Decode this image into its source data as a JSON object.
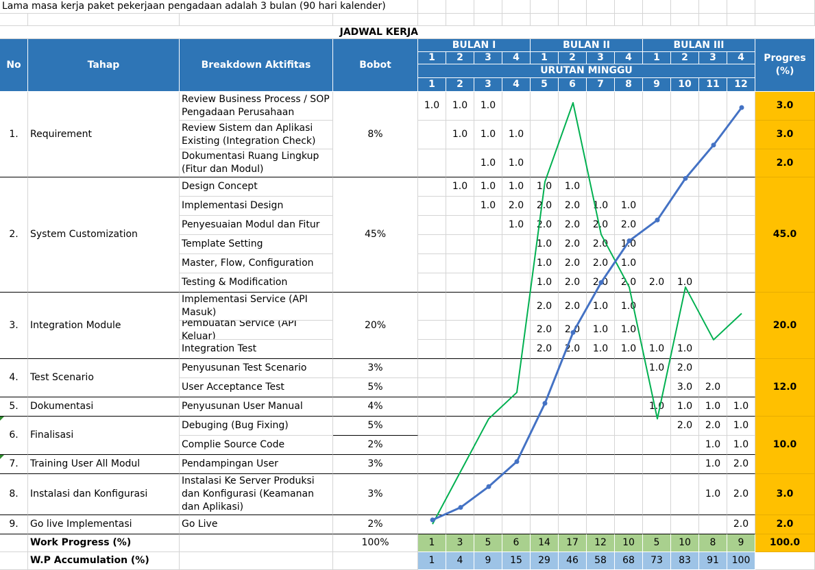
{
  "note": "Lama masa kerja paket pekerjaan pengadaan adalah 3 bulan (90 hari kalender)",
  "title": "JADWAL KERJA",
  "headers": {
    "no": "No",
    "tahap": "Tahap",
    "breakdown": "Breakdown Aktifitas",
    "bobot": "Bobot",
    "progres": "Progres (%)",
    "months": [
      "BULAN I",
      "BULAN II",
      "BULAN III"
    ],
    "month_weeks": [
      "1",
      "2",
      "3",
      "4",
      "1",
      "2",
      "3",
      "4",
      "1",
      "2",
      "3",
      "4"
    ],
    "urutan": "URUTAN MINGGU",
    "weeks": [
      "1",
      "2",
      "3",
      "4",
      "5",
      "6",
      "7",
      "8",
      "9",
      "10",
      "11",
      "12"
    ]
  },
  "activities": [
    {
      "name": "Review Business Process / SOP Pengadaan Perusahaan",
      "cells": [
        "1.0",
        "1.0",
        "1.0",
        "",
        "",
        "",
        "",
        "",
        "",
        "",
        "",
        ""
      ]
    },
    {
      "name": "Review Sistem dan Aplikasi Existing (Integration Check)",
      "cells": [
        "",
        "1.0",
        "1.0",
        "1.0",
        "",
        "",
        "",
        "",
        "",
        "",
        "",
        ""
      ]
    },
    {
      "name": "Dokumentasi Ruang Lingkup (Fitur dan Modul)",
      "cells": [
        "",
        "",
        "1.0",
        "1.0",
        "",
        "",
        "",
        "",
        "",
        "",
        "",
        ""
      ]
    },
    {
      "name": "Design Concept",
      "cells": [
        "",
        "1.0",
        "1.0",
        "1.0",
        "1.0",
        "1.0",
        "",
        "",
        "",
        "",
        "",
        ""
      ]
    },
    {
      "name": "Implementasi Design",
      "cells": [
        "",
        "",
        "1.0",
        "2.0",
        "2.0",
        "2.0",
        "1.0",
        "1.0",
        "",
        "",
        "",
        ""
      ]
    },
    {
      "name": "Penyesuaian Modul dan Fitur",
      "cells": [
        "",
        "",
        "",
        "1.0",
        "2.0",
        "2.0",
        "2.0",
        "2.0",
        "",
        "",
        "",
        ""
      ]
    },
    {
      "name": "Template Setting",
      "cells": [
        "",
        "",
        "",
        "",
        "1.0",
        "2.0",
        "2.0",
        "1.0",
        "",
        "",
        "",
        ""
      ]
    },
    {
      "name": "Master, Flow, Configuration",
      "cells": [
        "",
        "",
        "",
        "",
        "1.0",
        "2.0",
        "2.0",
        "1.0",
        "",
        "",
        "",
        ""
      ]
    },
    {
      "name": "Testing & Modification",
      "cells": [
        "",
        "",
        "",
        "",
        "1.0",
        "2.0",
        "2.0",
        "2.0",
        "2.0",
        "1.0",
        "",
        ""
      ]
    },
    {
      "name": "Implementasi Service (API Masuk)",
      "cells": [
        "",
        "",
        "",
        "",
        "2.0",
        "2.0",
        "1.0",
        "1.0",
        "",
        "",
        "",
        ""
      ]
    },
    {
      "name": "Pembuatan Service (API Keluar)",
      "cells": [
        "",
        "",
        "",
        "",
        "2.0",
        "2.0",
        "1.0",
        "1.0",
        "",
        "",
        "",
        ""
      ]
    },
    {
      "name": "Integration Test",
      "cells": [
        "",
        "",
        "",
        "",
        "2.0",
        "2.0",
        "1.0",
        "1.0",
        "1.0",
        "1.0",
        "",
        ""
      ]
    },
    {
      "name": "Penyusunan Test Scenario",
      "cells": [
        "",
        "",
        "",
        "",
        "",
        "",
        "",
        "",
        "1.0",
        "2.0",
        "",
        ""
      ]
    },
    {
      "name": "User Acceptance Test",
      "cells": [
        "",
        "",
        "",
        "",
        "",
        "",
        "",
        "",
        "",
        "3.0",
        "2.0",
        ""
      ]
    },
    {
      "name": "Penyusunan User Manual",
      "cells": [
        "",
        "",
        "",
        "",
        "",
        "",
        "",
        "",
        "1.0",
        "1.0",
        "1.0",
        "1.0"
      ]
    },
    {
      "name": "Debuging (Bug Fixing)",
      "cells": [
        "",
        "",
        "",
        "",
        "",
        "",
        "",
        "",
        "",
        "2.0",
        "2.0",
        "1.0"
      ]
    },
    {
      "name": "Complie Source Code",
      "cells": [
        "",
        "",
        "",
        "",
        "",
        "",
        "",
        "",
        "",
        "",
        "1.0",
        "1.0"
      ]
    },
    {
      "name": "Pendampingan User",
      "cells": [
        "",
        "",
        "",
        "",
        "",
        "",
        "",
        "",
        "",
        "",
        "1.0",
        "2.0"
      ]
    },
    {
      "name": "Instalasi Ke Server Produksi dan Konfigurasi (Keamanan dan Aplikasi)",
      "cells": [
        "",
        "",
        "",
        "",
        "",
        "",
        "",
        "",
        "",
        "",
        "1.0",
        "2.0"
      ]
    },
    {
      "name": "Go Live",
      "cells": [
        "",
        "",
        "",
        "",
        "",
        "",
        "",
        "",
        "",
        "",
        "",
        "2.0"
      ]
    }
  ],
  "stages": [
    {
      "no": "1.",
      "name": "Requirement"
    },
    {
      "no": "2.",
      "name": "System Customization"
    },
    {
      "no": "3.",
      "name": "Integration Module"
    },
    {
      "no": "4.",
      "name": "Test Scenario"
    },
    {
      "no": "5.",
      "name": "Dokumentasi"
    },
    {
      "no": "6.",
      "name": "Finalisasi"
    },
    {
      "no": "7.",
      "name": "Training User All Modul"
    },
    {
      "no": "8.",
      "name": "Instalasi dan Konfigurasi"
    },
    {
      "no": "9.",
      "name": "Go live Implementasi"
    }
  ],
  "bobot": [
    "8%",
    "45%",
    "20%",
    "3%",
    "5%",
    "4%",
    "5%",
    "2%",
    "3%",
    "3%",
    "2%"
  ],
  "progres": [
    "3.0",
    "3.0",
    "2.0",
    "45.0",
    "20.0",
    "12.0",
    "10.0",
    "3.0",
    "2.0"
  ],
  "summary": {
    "work_progress_label": "Work Progress (%)",
    "work_progress_total": "100%",
    "work_progress": [
      "1",
      "3",
      "5",
      "6",
      "14",
      "17",
      "12",
      "10",
      "5",
      "10",
      "8",
      "9"
    ],
    "work_progress_sum": "100.0",
    "wp_accum_label": "W.P Accumulation (%)",
    "wp_accum": [
      "1",
      "4",
      "9",
      "15",
      "29",
      "46",
      "58",
      "68",
      "73",
      "83",
      "91",
      "100"
    ]
  },
  "chart_data": {
    "type": "line",
    "x": [
      1,
      2,
      3,
      4,
      5,
      6,
      7,
      8,
      9,
      10,
      11,
      12
    ],
    "series": [
      {
        "values": [
          1,
          3,
          5,
          6,
          14,
          17,
          12,
          10,
          5,
          10,
          8,
          9
        ],
        "color": "#00b050"
      },
      {
        "values": [
          1,
          4,
          9,
          15,
          29,
          46,
          58,
          68,
          73,
          83,
          91,
          100
        ],
        "color": "#4472c4"
      }
    ],
    "ylim": [
      0,
      100
    ]
  }
}
